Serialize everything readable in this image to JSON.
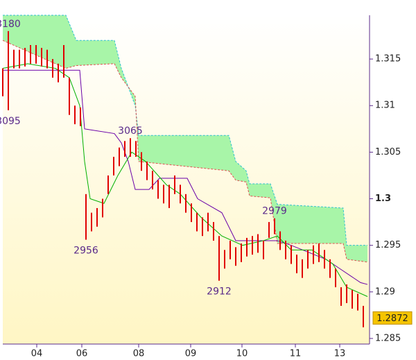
{
  "chart_data": {
    "type": "candlestick",
    "xlim": [
      0,
      132.25
    ],
    "ylim": [
      1.2844,
      1.3197
    ],
    "xticks": [
      {
        "value": 12.25,
        "label": "04"
      },
      {
        "value": 28.5,
        "label": "06"
      },
      {
        "value": 49,
        "label": "08"
      },
      {
        "value": 67.75,
        "label": "09"
      },
      {
        "value": 86.25,
        "label": "10"
      },
      {
        "value": 105.5,
        "label": "11"
      },
      {
        "value": 121.5,
        "label": "13"
      }
    ],
    "yticks": [
      1.285,
      1.29,
      1.295,
      1.3,
      1.305,
      1.31,
      1.315
    ],
    "bold_ytick": 1.3,
    "last_price": 1.2872,
    "bar_color": "#e00000",
    "x": [
      0,
      2,
      4,
      6,
      8,
      10,
      12,
      14,
      16,
      18,
      20,
      22,
      24,
      26,
      28,
      30,
      32,
      34,
      36,
      38,
      40,
      42,
      44,
      46,
      48,
      50,
      52,
      54,
      56,
      58,
      60,
      62,
      64,
      66,
      68,
      70,
      72,
      74,
      76,
      78,
      80,
      82,
      84,
      86,
      88,
      90,
      92,
      94,
      96,
      98,
      100,
      102,
      104,
      106,
      108,
      110,
      112,
      114,
      116,
      118,
      120,
      122,
      124,
      126,
      128,
      130
    ],
    "high": {
      "values": [
        1.314,
        1.318,
        1.316,
        1.316,
        1.3162,
        1.3165,
        1.3165,
        1.3162,
        1.316,
        1.315,
        1.3145,
        1.3165,
        1.313,
        1.31,
        1.3098,
        1.3005,
        1.2985,
        1.299,
        1.3,
        1.3025,
        1.3045,
        1.3055,
        1.3062,
        1.3065,
        1.3062,
        1.305,
        1.304,
        1.303,
        1.302,
        1.3015,
        1.3015,
        1.3025,
        1.3015,
        1.3005,
        1.2995,
        1.2985,
        1.298,
        1.2985,
        1.2975,
        1.296,
        1.2945,
        1.2955,
        1.2948,
        1.2952,
        1.2958,
        1.296,
        1.2962,
        1.2955,
        1.2975,
        1.2979,
        1.2965,
        1.2955,
        1.295,
        1.294,
        1.2935,
        1.2945,
        1.295,
        1.2952,
        1.2945,
        1.2935,
        1.2925,
        1.2905,
        1.2908,
        1.2902,
        1.2898,
        1.2885
      ],
      "value_labels": [
        null,
        "3180",
        null,
        null,
        null,
        null,
        null,
        null,
        null,
        null,
        null,
        null,
        null,
        null,
        null,
        null,
        null,
        null,
        null,
        null,
        null,
        null,
        null,
        "3065",
        null,
        null,
        null,
        null,
        null,
        null,
        null,
        null,
        null,
        null,
        null,
        null,
        null,
        null,
        null,
        null,
        null,
        null,
        null,
        null,
        null,
        null,
        null,
        null,
        null,
        "2979",
        null,
        null,
        null,
        null,
        null,
        null,
        null,
        null,
        null,
        null,
        null,
        null,
        null,
        null,
        null,
        null
      ]
    },
    "low": {
      "values": [
        1.311,
        1.3095,
        1.314,
        1.314,
        1.3142,
        1.3145,
        1.3145,
        1.3142,
        1.314,
        1.313,
        1.3125,
        1.313,
        1.309,
        1.308,
        1.3078,
        1.2956,
        1.2965,
        1.297,
        1.298,
        1.3005,
        1.3025,
        1.3035,
        1.3045,
        1.3045,
        1.3045,
        1.303,
        1.302,
        1.301,
        1.3,
        1.2995,
        1.299,
        1.3005,
        1.2995,
        1.2985,
        1.2975,
        1.2965,
        1.296,
        1.2965,
        1.2955,
        1.2912,
        1.2925,
        1.2935,
        1.2928,
        1.2932,
        1.2938,
        1.294,
        1.2942,
        1.2935,
        1.2958,
        1.2962,
        1.2945,
        1.2935,
        1.293,
        1.292,
        1.2915,
        1.2925,
        1.293,
        1.2932,
        1.2925,
        1.2915,
        1.2905,
        1.2885,
        1.2888,
        1.2882,
        1.288,
        1.2862
      ],
      "value_labels": [
        null,
        "3095",
        null,
        null,
        null,
        null,
        null,
        null,
        null,
        null,
        null,
        null,
        null,
        null,
        null,
        "2956",
        null,
        null,
        null,
        null,
        null,
        null,
        null,
        null,
        null,
        null,
        null,
        null,
        null,
        null,
        null,
        null,
        null,
        null,
        null,
        null,
        null,
        null,
        null,
        "2912",
        null,
        null,
        null,
        null,
        null,
        null,
        null,
        null,
        null,
        null,
        null,
        null,
        null,
        null,
        null,
        null,
        null,
        null,
        null,
        null,
        null,
        null,
        null,
        null,
        null,
        null
      ]
    },
    "lines": [
      {
        "color": "#6a00a8",
        "x": [
          0,
          27.75,
          29.5,
          40.25,
          42.75,
          45.25,
          47.75,
          52.75,
          56.5,
          66.5,
          70.25,
          79,
          84,
          94,
          99,
          104,
          116.5,
          121.5,
          129,
          131.5
        ],
        "values": [
          1.3138,
          1.3138,
          1.3075,
          1.307,
          1.306,
          1.304,
          1.301,
          1.301,
          1.3022,
          1.3022,
          1.3,
          1.2985,
          1.2955,
          1.2955,
          1.2955,
          1.295,
          1.2935,
          1.2925,
          1.291,
          1.2908
        ]
      },
      {
        "color": "#00b000",
        "x": [
          0,
          9,
          19,
          24,
          27.75,
          29.5,
          31.5,
          36.5,
          41.5,
          46.5,
          51.5,
          59,
          64,
          71.5,
          79,
          86.5,
          94,
          99,
          104,
          111.5,
          119,
          124,
          131.5
        ],
        "values": [
          1.314,
          1.3145,
          1.314,
          1.313,
          1.31,
          1.304,
          1.3,
          1.2995,
          1.3025,
          1.305,
          1.304,
          1.3015,
          1.3005,
          1.298,
          1.296,
          1.295,
          1.2955,
          1.296,
          1.2945,
          1.2945,
          1.293,
          1.2905,
          1.2895
        ]
      }
    ],
    "cloud": {
      "x": [
        0,
        22.75,
        26.5,
        40.25,
        42.75,
        47.75,
        49,
        81.5,
        84,
        87.75,
        89,
        96.5,
        99,
        122.75,
        124,
        131.5
      ],
      "span_a": [
        1.3197,
        1.3197,
        1.317,
        1.317,
        1.314,
        1.31,
        1.3068,
        1.3068,
        1.304,
        1.303,
        1.3016,
        1.3016,
        1.2994,
        1.299,
        1.295,
        1.295
      ],
      "span_b": [
        1.317,
        1.314,
        1.3143,
        1.3145,
        1.313,
        1.311,
        1.304,
        1.303,
        1.302,
        1.3018,
        1.3003,
        1.3001,
        1.2952,
        1.2952,
        1.2935,
        1.2932
      ],
      "span_a_color": "#30c0d0",
      "span_b_color": "#e05050",
      "fill": "#a8f5a8"
    }
  }
}
